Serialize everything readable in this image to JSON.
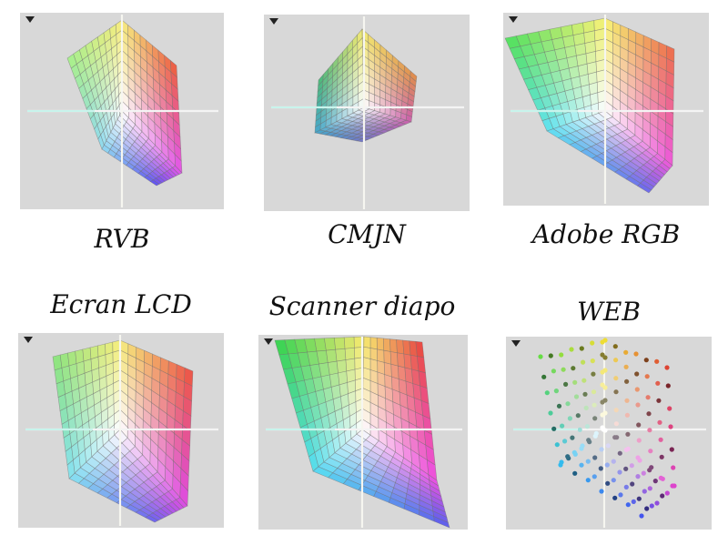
{
  "gamuts": [
    {
      "id": "rvb",
      "label": "RVB",
      "kind": "mesh",
      "colors": {
        "tl": "#a6f08a",
        "tr": "#ec5a3c",
        "top": "#f5eb7a",
        "center": "#ffffff",
        "bl": "#8ad8f0",
        "bottom": "#5a4ff0",
        "br": "#e04ee8"
      }
    },
    {
      "id": "cmjn",
      "label": "CMJN",
      "kind": "mesh",
      "colors": {
        "tl": "#48b87a",
        "tr": "#e08a48",
        "top": "#f0e86e",
        "center": "#ffffff",
        "bl": "#3ea2c8",
        "bottom": "#7078c8",
        "br": "#c85aa8"
      }
    },
    {
      "id": "adobe",
      "label": "Adobe RGB",
      "kind": "mesh",
      "colors": {
        "tl": "#4ee05a",
        "tr": "#ec6a48",
        "top": "#f5f070",
        "center": "#ffffff",
        "bl": "#5ae0f0",
        "bottom": "#6a66ec",
        "br": "#ec52d8"
      }
    },
    {
      "id": "lcd",
      "label": "Ecran LCD",
      "kind": "mesh",
      "colors": {
        "tl": "#8ae47a",
        "tr": "#ec5040",
        "top": "#f5ec78",
        "center": "#ffffff",
        "bl": "#80e0f0",
        "bottom": "#6a60f0",
        "br": "#dc44e0"
      }
    },
    {
      "id": "scanner",
      "label": "Scanner diapo",
      "kind": "mesh",
      "colors": {
        "tl": "#32d24a",
        "tr": "#e8443a",
        "top": "#f5e868",
        "center": "#ffffff",
        "bl": "#50dcf0",
        "bottom": "#5a5aec",
        "br": "#ec48e0"
      }
    },
    {
      "id": "web",
      "label": "WEB",
      "kind": "dots",
      "colors": {
        "tl": "#66dd44",
        "tr": "#dd4433",
        "top": "#eedd33",
        "center": "#ffffff",
        "bl": "#33bbee",
        "bottom": "#4455ee",
        "br": "#dd44cc"
      }
    }
  ]
}
